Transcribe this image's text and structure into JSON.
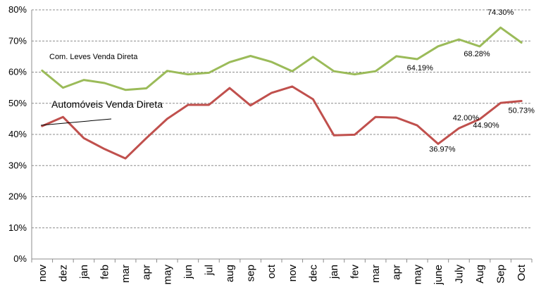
{
  "chart_data": {
    "type": "line",
    "title": "",
    "xlabel": "",
    "ylabel": "",
    "ylim": [
      0,
      80
    ],
    "y_ticks": [
      "0%",
      "10%",
      "20%",
      "30%",
      "40%",
      "50%",
      "60%",
      "70%",
      "80%"
    ],
    "grid": true,
    "categories": [
      "nov",
      "dez",
      "jan",
      "feb",
      "mar",
      "apr",
      "may",
      "jun",
      "jul",
      "aug",
      "sep",
      "oct",
      "nov",
      "dec",
      "jan",
      "fev",
      "mar",
      "apr",
      "may",
      "june",
      "July",
      "Aug",
      "Sep",
      "Oct"
    ],
    "series": [
      {
        "name": "Com. Leves Venda Direta",
        "color": "#9BBB59",
        "values": [
          60.5,
          55.0,
          57.5,
          56.5,
          54.3,
          54.8,
          60.4,
          59.3,
          59.8,
          63.2,
          65.2,
          63.3,
          60.3,
          64.9,
          60.3,
          59.3,
          60.3,
          65.1,
          64.19,
          68.3,
          70.5,
          68.28,
          74.3,
          69.5
        ]
      },
      {
        "name": "Automóveis Venda Direta",
        "color": "#C0504D",
        "values": [
          42.7,
          45.6,
          38.8,
          35.3,
          32.3,
          38.8,
          45.0,
          49.5,
          49.5,
          54.9,
          49.3,
          53.3,
          55.4,
          51.3,
          39.7,
          39.9,
          45.6,
          45.4,
          42.9,
          36.97,
          42.0,
          44.9,
          50.1,
          50.73
        ]
      }
    ],
    "data_labels": [
      {
        "series": 0,
        "index": 22,
        "text": "74.30%"
      },
      {
        "series": 0,
        "index": 21,
        "text": "68.28%"
      },
      {
        "series": 0,
        "index": 18,
        "text": "64.19%"
      },
      {
        "series": 1,
        "index": 20,
        "text": "42.00%"
      },
      {
        "series": 1,
        "index": 23,
        "text": "50.73%"
      },
      {
        "series": 1,
        "index": 21,
        "text": "44.90%"
      },
      {
        "series": 1,
        "index": 19,
        "text": "36.97%"
      }
    ],
    "series_labels": {
      "green": "Com. Leves Venda Direta",
      "red": "Automóveis Venda Direta"
    }
  }
}
